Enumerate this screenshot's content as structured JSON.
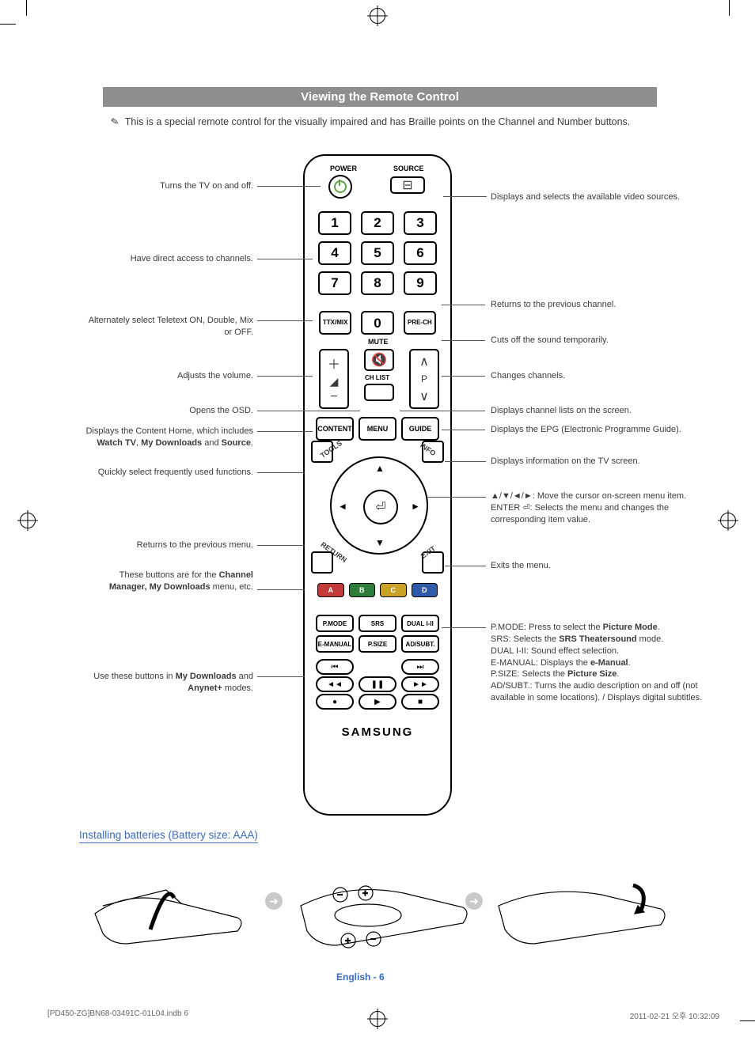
{
  "page": {
    "title_bar": "Viewing the Remote Control",
    "note": "This is a special remote control for the visually impaired and has Braille points on the Channel and Number buttons.",
    "install_title": "Installing batteries (Battery size: AAA)",
    "page_label": "English - 6",
    "footer_left": "[PD450-ZG]BN68-03491C-01L04.indb   6",
    "footer_right": "2011-02-21   오후 10:32:09"
  },
  "remote": {
    "labels": {
      "power": "POWER",
      "source": "SOURCE",
      "mute": "MUTE",
      "chlist": "CH LIST"
    },
    "numbers": [
      "1",
      "2",
      "3",
      "4",
      "5",
      "6",
      "7",
      "8",
      "9"
    ],
    "ttx_row": {
      "ttx": "TTX/MIX",
      "zero": "0",
      "prech": "PRE-CH"
    },
    "menu_row": {
      "content": "CONTENT",
      "menu": "MENU",
      "guide": "GUIDE"
    },
    "corner": {
      "tools": "TOOLS",
      "info": "INFO",
      "ret": "RETURN",
      "exit": "EXIT"
    },
    "feature_row1": {
      "pmode": "P.MODE",
      "srs": "SRS",
      "dual": "DUAL I-II"
    },
    "feature_row2": {
      "emanual": "E-MANUAL",
      "psize": "P.SIZE",
      "adsubt": "AD/SUBT."
    },
    "brand": "SAMSUNG"
  },
  "color_buttons": [
    {
      "label": "A",
      "color": "#c23a3a"
    },
    {
      "label": "B",
      "color": "#2e7d3a"
    },
    {
      "label": "C",
      "color": "#c9a227"
    },
    {
      "label": "D",
      "color": "#2e5aa8"
    }
  ],
  "callouts": {
    "left": {
      "power": "Turns the TV on and off.",
      "numbers": "Have direct access to channels.",
      "ttx": "Alternately select Teletext ON, Double, Mix or OFF.",
      "volume": "Adjusts the volume.",
      "osd": "Opens the OSD.",
      "content1": "Displays the Content Home, which includes ",
      "content_b1": "Watch TV",
      "content_sep1": ", ",
      "content_b2": "My Downloads",
      "content_sep2": " and ",
      "content_b3": "Source",
      "content_dot": ".",
      "tools": "Quickly select frequently used functions.",
      "return": "Returns to the previous menu.",
      "colors1": "These buttons are for the ",
      "colors_b1": "Channel Manager, My Downloads",
      "colors2": " menu, etc.",
      "play1": "Use these buttons in ",
      "play_b1": "My Downloads",
      "play2": " and ",
      "play_b2": "Anynet+",
      "play3": " modes."
    },
    "right": {
      "source": "Displays and selects the available video sources.",
      "prech": "Returns to the previous channel.",
      "mute": "Cuts off the sound temporarily.",
      "channel": "Changes channels.",
      "chlist": "Displays channel lists on the screen.",
      "guide": "Displays the EPG (Electronic Programme Guide).",
      "info": "Displays information on the TV screen.",
      "cursor1": "▲/▼/◄/►: Move the cursor on-screen menu item.",
      "cursor2a": "ENTER",
      "cursor2b": ": Selects the menu and changes the corresponding item value.",
      "exit": "Exits the menu.",
      "feat_pmode_a": "P.MODE: Press to select the ",
      "feat_pmode_b": "Picture Mode",
      "feat_pmode_c": ".",
      "feat_srs_a": "SRS: Selects the ",
      "feat_srs_b": "SRS Theatersound",
      "feat_srs_c": " mode.",
      "feat_dual": "DUAL I-II: Sound effect selection.",
      "feat_eman_a": "E-MANUAL: Displays the ",
      "feat_eman_b": "e-Manual",
      "feat_eman_c": ".",
      "feat_psize_a": "P.SIZE: Selects the ",
      "feat_psize_b": "Picture Size",
      "feat_psize_c": ".",
      "feat_adsubt": "AD/SUBT.: Turns the audio description on and off (not available in some locations). / Displays digital subtitles."
    }
  },
  "style": {
    "title_bg": "#8e8e8e",
    "subheading_color": "#3b6bbf",
    "text_color": "#3a3a3a",
    "body_fontsize": 11,
    "remote_width": 184,
    "remote_height": 832
  }
}
